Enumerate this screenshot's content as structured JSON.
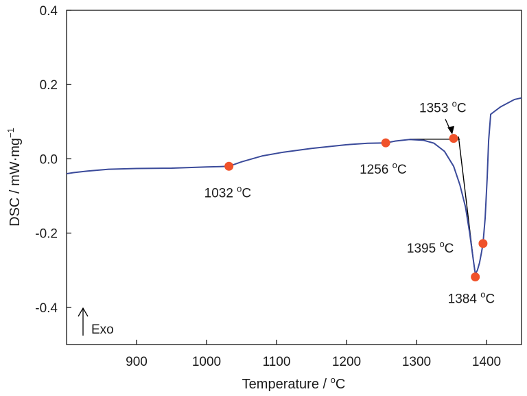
{
  "chart_data": {
    "type": "line",
    "xlabel": "Temperature / ",
    "xlabel_unit": "C",
    "ylabel": "DSC / mW·mg",
    "ylabel_exp": "−1",
    "xlim": [
      800,
      1450
    ],
    "ylim": [
      -0.5,
      0.4
    ],
    "x_ticks": [
      900,
      1000,
      1100,
      1200,
      1300,
      1400
    ],
    "y_ticks": [
      0.4,
      0.2,
      0.0,
      -0.2,
      -0.4
    ],
    "x_tick_labels": [
      "900",
      "1000",
      "1100",
      "1200",
      "1300",
      "1400"
    ],
    "y_tick_labels": [
      "0.4",
      "0.2",
      "0.0",
      "-0.2",
      "-0.4"
    ],
    "grid": false,
    "colors": {
      "curve": "#3a4a9a",
      "marker": "#f0522a",
      "tangent": "#000000"
    },
    "series": [
      {
        "x": [
          800,
          810,
          830,
          860,
          900,
          950,
          1000,
          1020,
          1032,
          1050,
          1080,
          1110,
          1150,
          1200,
          1230,
          1256,
          1270,
          1290,
          1310,
          1325,
          1340,
          1353,
          1362,
          1370,
          1376,
          1381,
          1384,
          1387,
          1390,
          1393,
          1395,
          1398,
          1401,
          1403,
          1406,
          1420,
          1440,
          1450
        ],
        "y": [
          -0.04,
          -0.037,
          -0.033,
          -0.028,
          -0.026,
          -0.025,
          -0.022,
          -0.021,
          -0.02,
          -0.008,
          0.008,
          0.018,
          0.028,
          0.038,
          0.042,
          0.043,
          0.048,
          0.052,
          0.05,
          0.042,
          0.02,
          -0.02,
          -0.07,
          -0.13,
          -0.2,
          -0.27,
          -0.31,
          -0.3,
          -0.28,
          -0.25,
          -0.228,
          -0.16,
          -0.05,
          0.05,
          0.12,
          0.14,
          0.16,
          0.164
        ]
      }
    ],
    "markers": [
      {
        "x": 1032,
        "y": -0.02,
        "label": "1032",
        "unit": "C"
      },
      {
        "x": 1256,
        "y": 0.043,
        "label": "1256",
        "unit": "C"
      },
      {
        "x": 1353,
        "y": 0.055,
        "label": "1353",
        "unit": "C"
      },
      {
        "x": 1395,
        "y": -0.228,
        "label": "1395",
        "unit": "C"
      },
      {
        "x": 1384,
        "y": -0.318,
        "label": "1384",
        "unit": "C"
      }
    ],
    "tangent_baseline": {
      "x": [
        1290,
        1362
      ],
      "y": [
        0.053,
        0.053
      ]
    },
    "tangent_slope": {
      "x": [
        1360,
        1383
      ],
      "y": [
        0.06,
        -0.3
      ]
    },
    "degree_symbol": "o",
    "exo_label": "Exo"
  }
}
